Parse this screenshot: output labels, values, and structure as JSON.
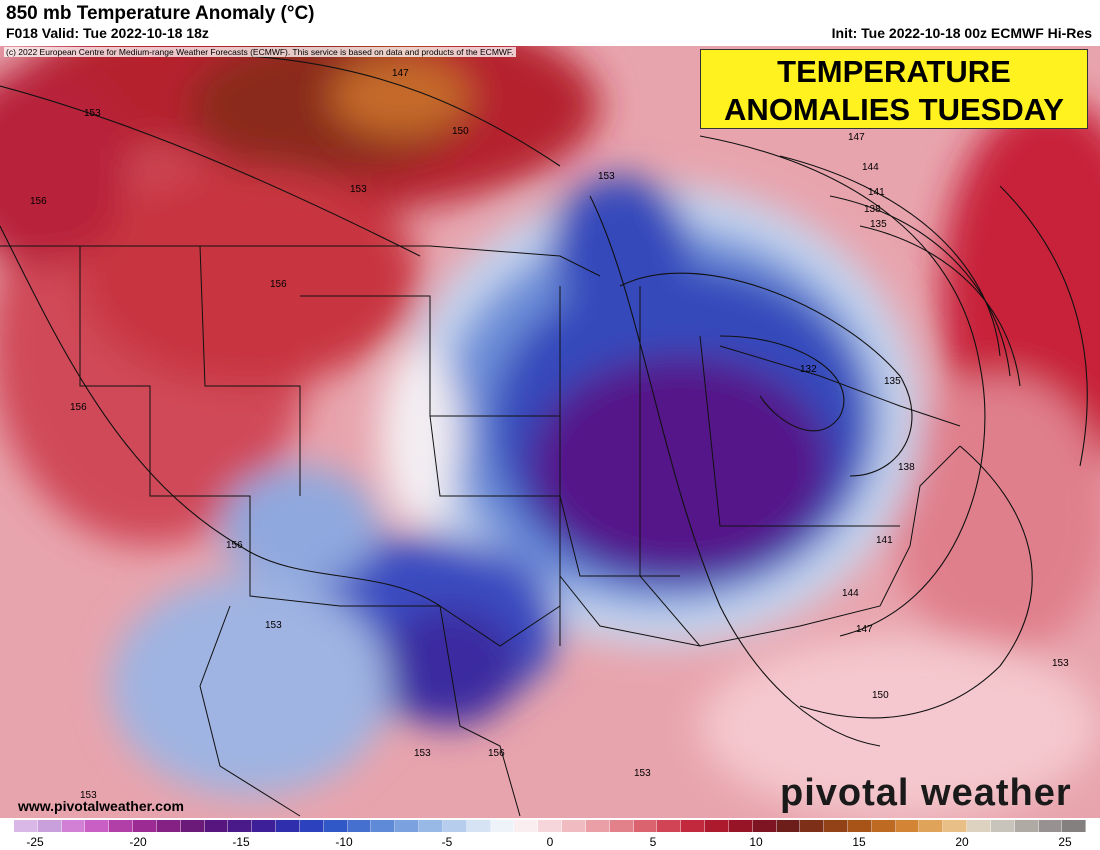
{
  "header": {
    "title": "850 mb Temperature Anomaly (°C)",
    "valid": "F018 Valid: Tue 2022-10-18 18z",
    "init": "Init: Tue 2022-10-18 00z ECMWF Hi-Res"
  },
  "copyright": "(c) 2022 European Centre for Medium-range Weather Forecasts (ECMWF). This service is based on data and products of the ECMWF.",
  "banner": {
    "line1": "TEMPERATURE",
    "line2": "ANOMALIES TUESDAY"
  },
  "footer": {
    "website": "www.pivotalweather.com",
    "brand": "pivotal weather"
  },
  "contour_labels": [
    "147",
    "150",
    "153",
    "156",
    "153",
    "153",
    "156",
    "156",
    "156",
    "153",
    "153",
    "156",
    "153",
    "153",
    "147",
    "144",
    "141",
    "138",
    "135",
    "132",
    "135",
    "138",
    "141",
    "144",
    "147",
    "150",
    "153"
  ],
  "colorbar": {
    "ticks": [
      "-25",
      "-20",
      "-15",
      "-10",
      "-5",
      "0",
      "5",
      "10",
      "15",
      "20",
      "25"
    ],
    "colors": [
      "#d9b8e8",
      "#c9a0dc",
      "#d27fd6",
      "#c95fc4",
      "#b23fa8",
      "#9c2b93",
      "#852184",
      "#6c1a7a",
      "#57167f",
      "#4b1a8a",
      "#3e1f9a",
      "#2f2fae",
      "#2c41bd",
      "#3158c7",
      "#4670cf",
      "#5f8ad8",
      "#7ba2df",
      "#98b8e6",
      "#b7cdee",
      "#d6e3f5",
      "#eef3fa",
      "#fbeef0",
      "#f6d6da",
      "#f0bcc2",
      "#ea9fa7",
      "#e3818b",
      "#db6370",
      "#d14455",
      "#c2293d",
      "#ad1a2e",
      "#961426",
      "#7e1422",
      "#6d1d1a",
      "#7d2f18",
      "#934117",
      "#a85419",
      "#bf6a22",
      "#d38535",
      "#e0a35a",
      "#e8bf86",
      "#ddd2c0",
      "#c8c4bc",
      "#b0aaa4",
      "#979291",
      "#858080"
    ]
  }
}
